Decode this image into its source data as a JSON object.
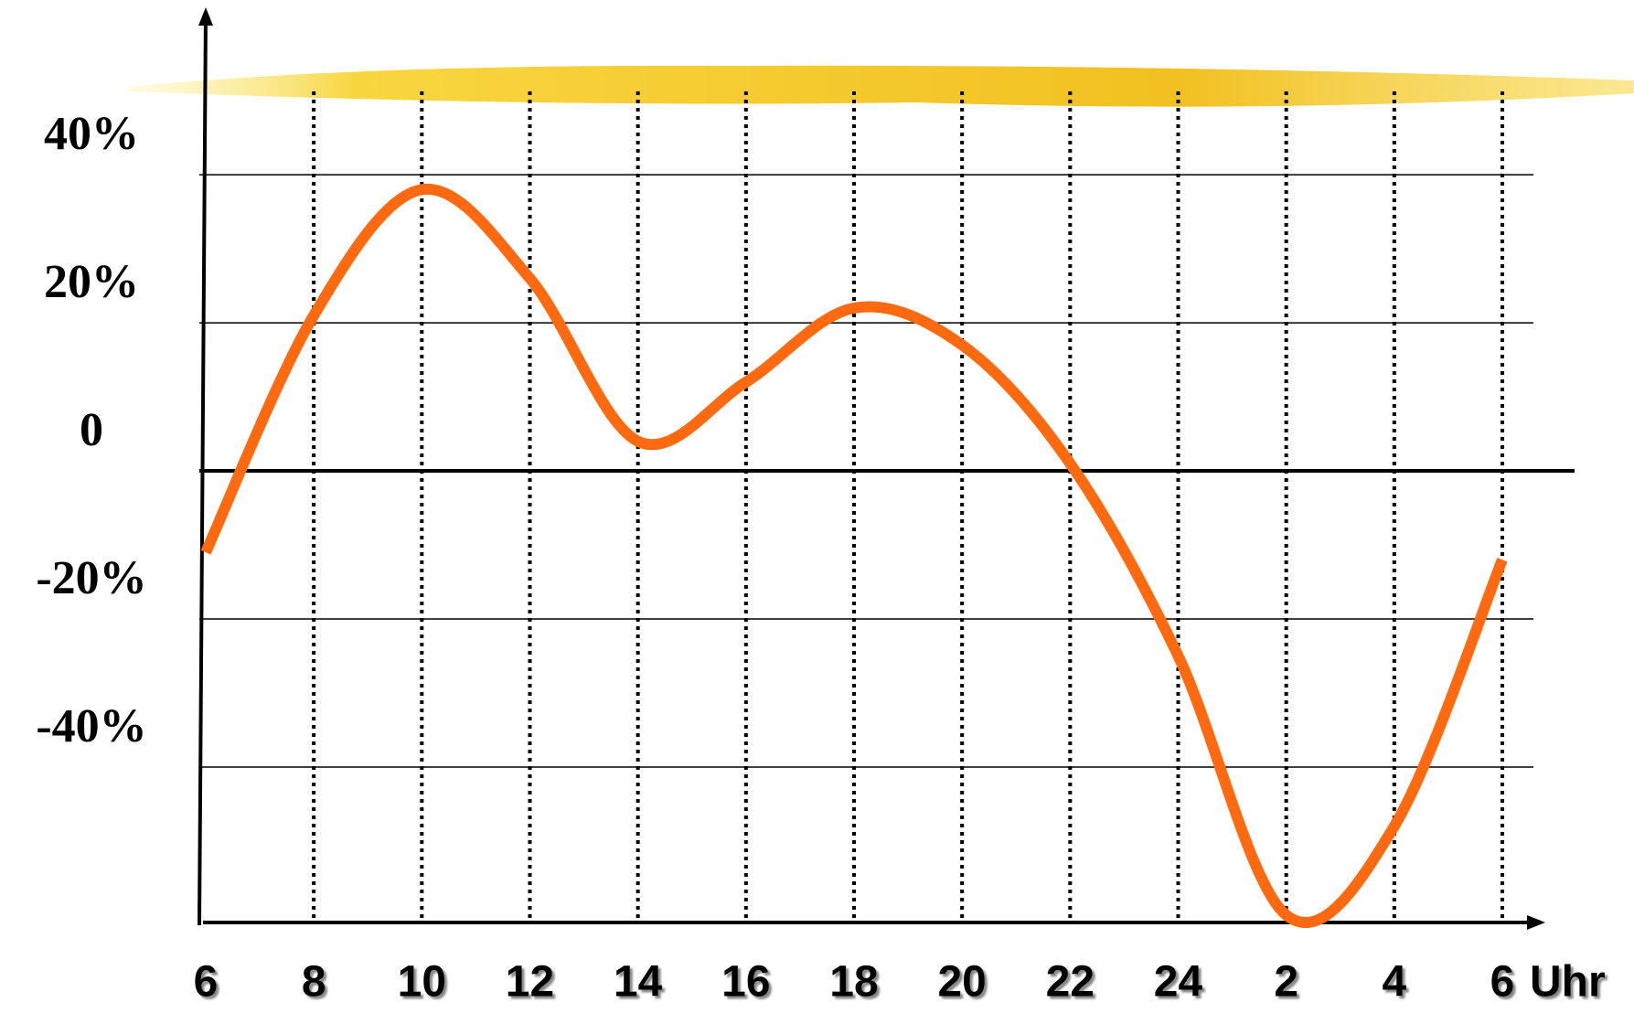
{
  "chart_data": {
    "type": "line",
    "categories": [
      "6",
      "8",
      "10",
      "12",
      "14",
      "16",
      "18",
      "20",
      "22",
      "24",
      "2",
      "4",
      "6"
    ],
    "x_label": "Uhr",
    "series": [
      {
        "name": null,
        "color": "#ff6a10",
        "values": [
          -11,
          21,
          38,
          26,
          4,
          12,
          22,
          17,
          1,
          -25,
          -60,
          -48,
          -12
        ]
      }
    ],
    "ylim": [
      -61,
      62
    ],
    "yticks": [
      {
        "value": -40,
        "label": "-40%"
      },
      {
        "value": -20,
        "label": "-20%"
      },
      0,
      {
        "value": 20,
        "label": "20%"
      },
      {
        "value": 40,
        "label": "40%"
      }
    ],
    "grid": true
  }
}
